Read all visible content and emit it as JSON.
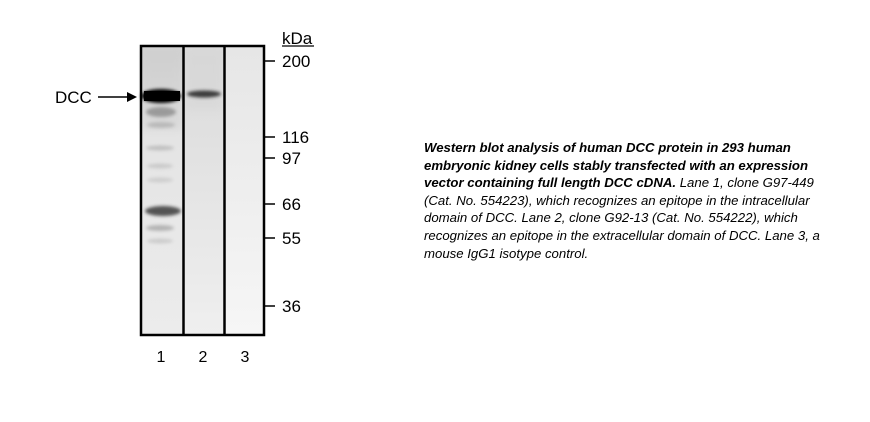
{
  "figure": {
    "unit_label": "kDa",
    "target_label": "DCC",
    "markers": [
      "200",
      "116",
      "97",
      "66",
      "55",
      "36"
    ],
    "lanes": [
      "1",
      "2",
      "3"
    ]
  },
  "caption": {
    "bold_text": "Western blot analysis of human DCC protein in 293 human embryonic kidney cells stably transfected with an expression vector containing full length DCC cDNA.",
    "body_text": "Lane 1, clone G97-449 (Cat. No. 554223), which recognizes an epitope in the intracellular domain of DCC. Lane 2, clone G92-13 (Cat. No. 554222), which recognizes an epitope in the extracellular domain of DCC. Lane 3, a mouse IgG1 isotype control."
  }
}
